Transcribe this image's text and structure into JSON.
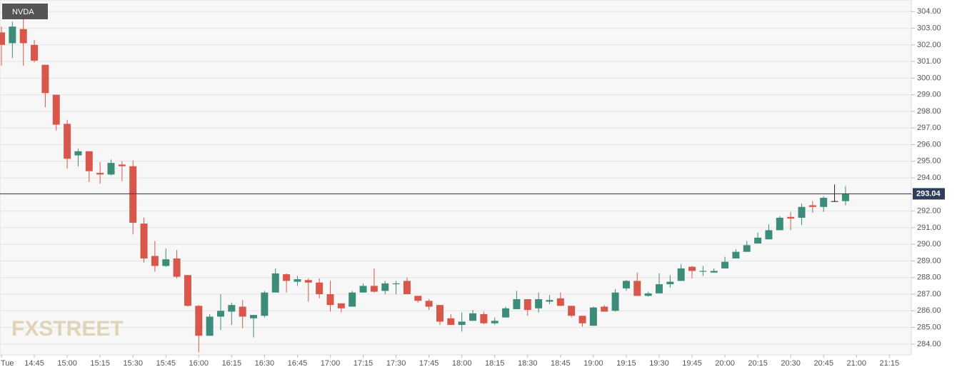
{
  "chart_data": {
    "type": "candlestick",
    "symbol": "NVDA",
    "watermark": "FXSTREET",
    "x": [
      "14:30",
      "14:35",
      "14:40",
      "14:45",
      "14:50",
      "14:55",
      "15:00",
      "15:05",
      "15:10",
      "15:15",
      "15:20",
      "15:25",
      "15:30",
      "15:35",
      "15:40",
      "15:45",
      "15:50",
      "15:55",
      "16:00",
      "16:05",
      "16:10",
      "16:15",
      "16:20",
      "16:25",
      "16:30",
      "16:35",
      "16:40",
      "16:45",
      "16:50",
      "16:55",
      "17:00",
      "17:05",
      "17:10",
      "17:15",
      "17:20",
      "17:25",
      "17:30",
      "17:35",
      "17:40",
      "17:45",
      "17:50",
      "17:55",
      "18:00",
      "18:05",
      "18:10",
      "18:15",
      "18:20",
      "18:25",
      "18:30",
      "18:35",
      "18:40",
      "18:45",
      "18:50",
      "18:55",
      "19:00",
      "19:05",
      "19:10",
      "19:15",
      "19:20",
      "19:25",
      "19:30",
      "19:35",
      "19:40",
      "19:45",
      "19:50",
      "19:55",
      "20:00",
      "20:05",
      "20:10",
      "20:15",
      "20:20",
      "20:25",
      "20:30",
      "20:35",
      "20:40",
      "20:45",
      "20:50",
      "20:55"
    ],
    "open": [
      302.75,
      302.1,
      302.95,
      302.0,
      300.8,
      299.0,
      297.25,
      295.35,
      295.6,
      294.3,
      294.2,
      294.8,
      294.7,
      291.25,
      289.3,
      288.7,
      289.15,
      288.15,
      286.3,
      284.5,
      285.65,
      285.95,
      286.25,
      285.55,
      285.7,
      287.1,
      288.2,
      287.75,
      287.85,
      287.7,
      287.0,
      286.45,
      286.25,
      287.1,
      287.5,
      287.2,
      287.6,
      287.8,
      286.9,
      286.6,
      286.35,
      285.55,
      285.15,
      285.4,
      285.8,
      285.25,
      285.6,
      286.1,
      286.7,
      286.15,
      286.55,
      286.75,
      286.3,
      285.7,
      285.1,
      286.25,
      286.0,
      287.35,
      287.8,
      286.9,
      287.05,
      287.6,
      287.8,
      288.65,
      288.35,
      288.3,
      288.55,
      289.15,
      289.55,
      290.05,
      290.3,
      290.85,
      291.65,
      291.6,
      292.35,
      292.25,
      292.6,
      292.6
    ],
    "high": [
      303.1,
      303.4,
      303.75,
      302.3,
      300.8,
      299.0,
      297.5,
      295.75,
      295.6,
      294.95,
      295.1,
      295.0,
      295.05,
      291.6,
      290.2,
      289.75,
      289.65,
      288.15,
      286.35,
      285.8,
      287.0,
      286.5,
      286.65,
      285.75,
      287.2,
      288.55,
      288.25,
      288.1,
      287.95,
      287.95,
      287.8,
      286.45,
      287.2,
      287.65,
      288.55,
      287.8,
      287.8,
      288.0,
      286.9,
      286.7,
      286.35,
      285.8,
      285.9,
      286.05,
      285.95,
      285.6,
      286.25,
      287.2,
      286.7,
      287.1,
      286.95,
      287.1,
      286.3,
      285.7,
      286.25,
      286.35,
      287.3,
      287.85,
      288.3,
      287.15,
      288.25,
      288.15,
      288.8,
      288.7,
      288.7,
      288.55,
      289.25,
      289.7,
      290.2,
      290.7,
      291.2,
      291.7,
      291.95,
      292.45,
      292.6,
      292.9,
      293.6,
      293.5
    ],
    "low": [
      300.75,
      301.2,
      300.75,
      300.95,
      298.25,
      296.85,
      294.55,
      294.7,
      293.75,
      293.65,
      294.15,
      293.8,
      290.6,
      288.9,
      288.35,
      288.65,
      287.95,
      286.25,
      283.5,
      284.5,
      284.85,
      285.15,
      284.95,
      284.4,
      285.6,
      287.1,
      287.1,
      287.5,
      286.55,
      286.75,
      285.95,
      285.9,
      286.25,
      287.1,
      287.1,
      287.0,
      287.0,
      287.0,
      286.5,
      286.05,
      285.15,
      285.15,
      284.75,
      285.4,
      285.2,
      285.15,
      285.6,
      286.1,
      285.7,
      285.9,
      286.4,
      286.3,
      285.6,
      285.05,
      285.1,
      285.95,
      285.95,
      287.2,
      286.9,
      286.85,
      287.05,
      287.4,
      287.8,
      287.95,
      288.1,
      288.3,
      288.55,
      289.15,
      289.55,
      290.05,
      290.3,
      290.85,
      290.85,
      291.15,
      291.9,
      291.95,
      292.55,
      292.35
    ],
    "close": [
      302.0,
      303.1,
      302.1,
      301.05,
      299.1,
      297.2,
      295.15,
      295.6,
      294.4,
      294.2,
      294.9,
      294.7,
      291.3,
      289.15,
      288.7,
      289.1,
      288.05,
      286.3,
      284.5,
      285.65,
      286.0,
      286.35,
      285.65,
      285.75,
      287.1,
      288.25,
      287.8,
      287.9,
      287.7,
      287.0,
      286.35,
      286.15,
      287.1,
      287.5,
      287.15,
      287.65,
      287.65,
      287.0,
      286.6,
      286.25,
      285.35,
      285.15,
      285.35,
      285.85,
      285.25,
      285.4,
      286.15,
      286.7,
      286.05,
      286.7,
      286.65,
      286.3,
      285.7,
      285.25,
      286.2,
      285.95,
      287.1,
      287.8,
      286.9,
      287.05,
      287.6,
      287.75,
      288.55,
      288.4,
      288.4,
      288.4,
      288.95,
      289.55,
      289.95,
      290.4,
      290.85,
      291.6,
      291.55,
      292.25,
      292.25,
      292.8,
      292.6,
      293.04
    ],
    "up_color": "#3b8c78",
    "down_color": "#d9574a",
    "flat_color": "#222222",
    "last_price": 293.04,
    "last_price_color": "#2d3e5a",
    "xlim": [
      "14:30",
      "21:25"
    ],
    "xticks": [
      {
        "value": "14:30",
        "label": "Tue"
      },
      "14:45",
      "15:00",
      "15:15",
      "15:30",
      "15:45",
      "16:00",
      "16:15",
      "16:30",
      "16:45",
      "17:00",
      "17:15",
      "17:30",
      "17:45",
      "18:00",
      "18:15",
      "18:30",
      "18:45",
      "19:00",
      "19:15",
      "19:30",
      "19:45",
      "20:00",
      "20:15",
      "20:30",
      "20:45",
      "21:00",
      "21:15"
    ],
    "ylim": [
      283.35,
      304.7
    ],
    "yticks": [
      {
        "value": 284,
        "label": "284.00"
      },
      {
        "value": 285,
        "label": "285.00"
      },
      {
        "value": 286,
        "label": "286.00"
      },
      {
        "value": 287,
        "label": "287.00"
      },
      {
        "value": 288,
        "label": "288.00"
      },
      {
        "value": 289,
        "label": "289.00"
      },
      {
        "value": 290,
        "label": "290.00"
      },
      {
        "value": 291,
        "label": "291.00"
      },
      {
        "value": 292,
        "label": "292.00"
      },
      {
        "value": 293,
        "label": "293.00"
      },
      {
        "value": 294,
        "label": "294.00"
      },
      {
        "value": 295,
        "label": "295.00"
      },
      {
        "value": 296,
        "label": "296.00"
      },
      {
        "value": 297,
        "label": "297.00"
      },
      {
        "value": 298,
        "label": "298.00"
      },
      {
        "value": 299,
        "label": "299.00"
      },
      {
        "value": 300,
        "label": "300.00"
      },
      {
        "value": 301,
        "label": "301.00"
      },
      {
        "value": 302,
        "label": "302.00"
      },
      {
        "value": 303,
        "label": "303.00"
      },
      {
        "value": 304,
        "label": "304.00"
      }
    ],
    "grid": true
  }
}
